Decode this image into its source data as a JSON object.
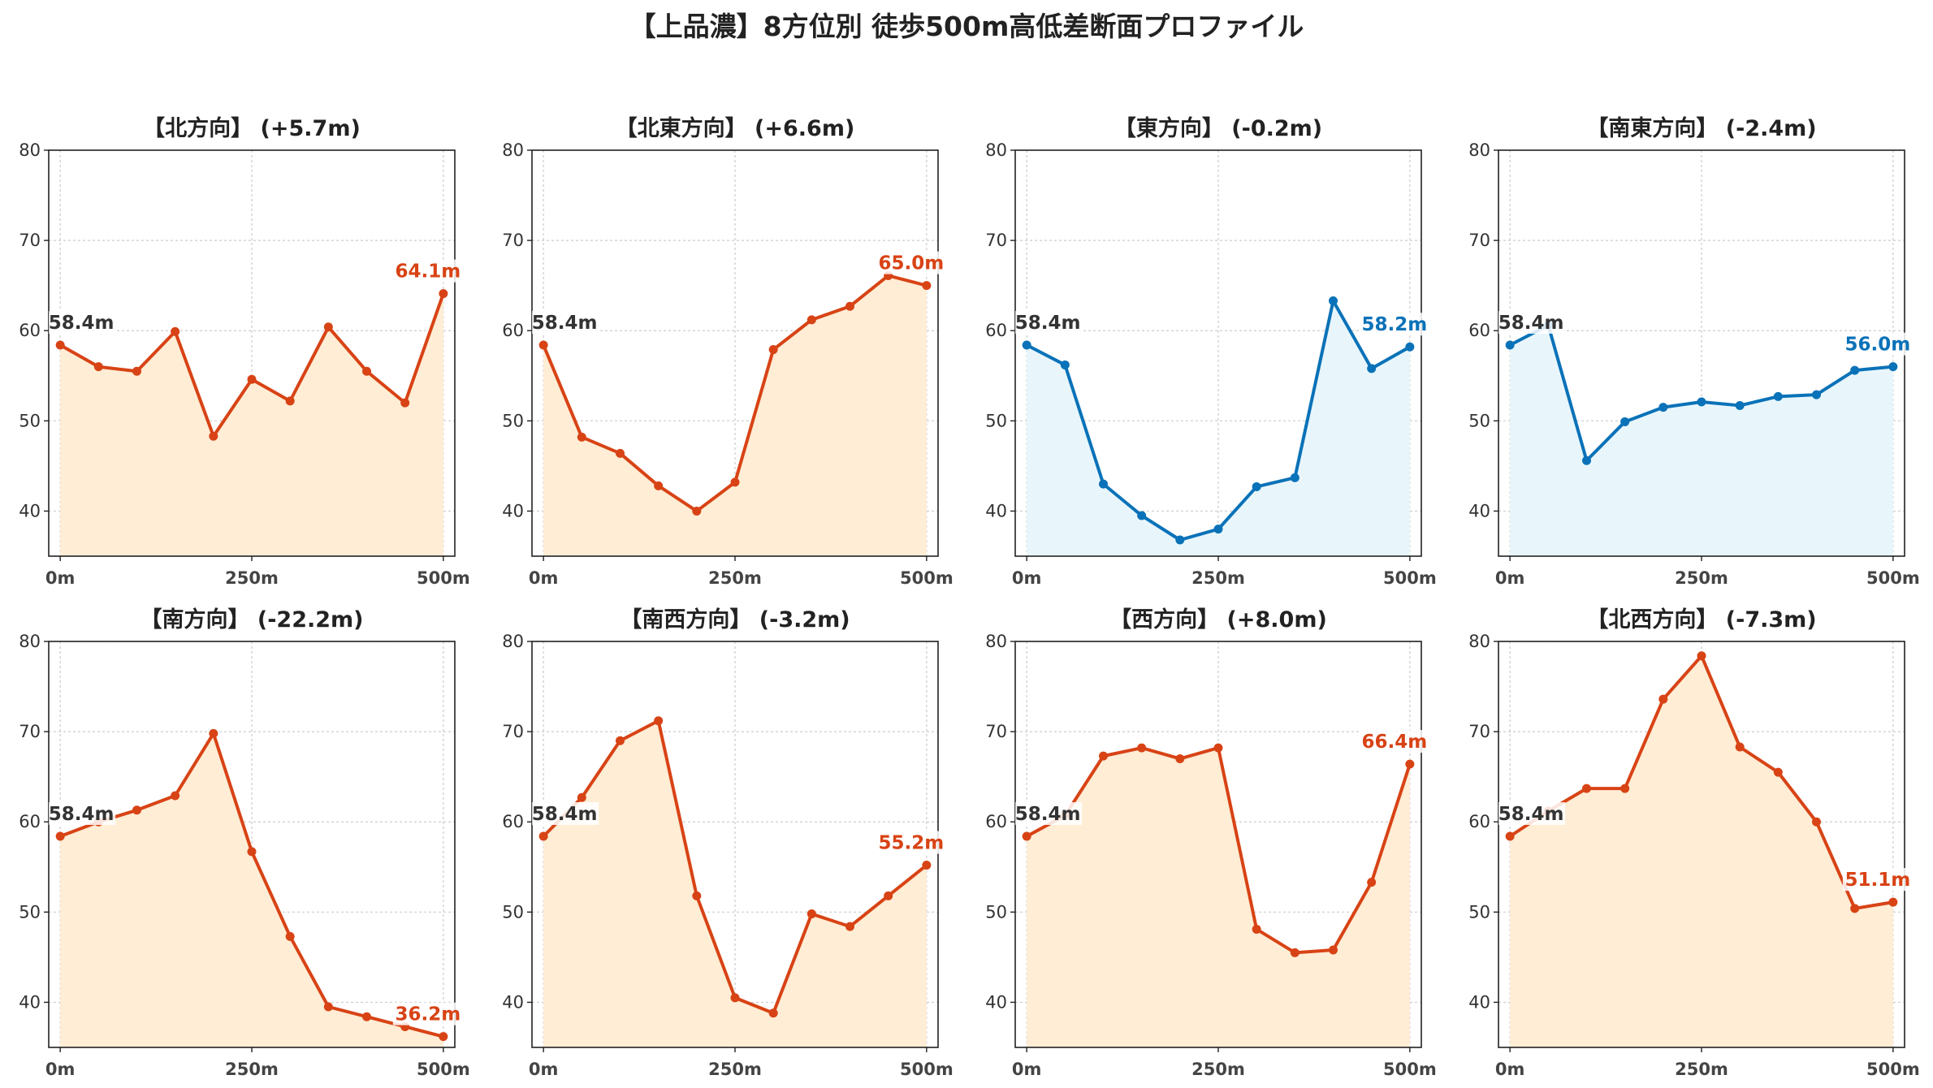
{
  "figure_title": "【上品濃】8方位別 徒歩500m高低差断面プロファイル",
  "colors": {
    "up_line": "#d84315",
    "up_fill": "#ffedd5",
    "down_line": "#0a72b8",
    "down_fill": "#e8f6fc",
    "start_label": "#333333",
    "grid": "#cccccc"
  },
  "chart_data": [
    {
      "type": "line",
      "title": "【北方向】 (+5.7m)",
      "trend": "up",
      "x": [
        0,
        50,
        100,
        150,
        200,
        250,
        300,
        350,
        400,
        450,
        500
      ],
      "y": [
        58.4,
        56.0,
        55.5,
        59.9,
        48.3,
        54.6,
        52.2,
        60.4,
        55.5,
        52.0,
        64.1
      ],
      "start_label": "58.4m",
      "end_label": "64.1m",
      "xticks": [
        "0m",
        "250m",
        "500m"
      ],
      "yticks": [
        40,
        50,
        60,
        70,
        80
      ],
      "xlim": [
        -15,
        515
      ],
      "ylim": [
        35,
        80
      ],
      "grid": true
    },
    {
      "type": "line",
      "title": "【北東方向】 (+6.6m)",
      "trend": "up",
      "x": [
        0,
        50,
        100,
        150,
        200,
        250,
        300,
        350,
        400,
        450,
        500
      ],
      "y": [
        58.4,
        48.2,
        46.4,
        42.8,
        40.0,
        43.2,
        57.9,
        61.2,
        62.7,
        66.1,
        65.0
      ],
      "start_label": "58.4m",
      "end_label": "65.0m",
      "xticks": [
        "0m",
        "250m",
        "500m"
      ],
      "yticks": [
        40,
        50,
        60,
        70,
        80
      ],
      "xlim": [
        -15,
        515
      ],
      "ylim": [
        35,
        80
      ],
      "grid": true
    },
    {
      "type": "line",
      "title": "【東方向】 (-0.2m)",
      "trend": "down",
      "x": [
        0,
        50,
        100,
        150,
        200,
        250,
        300,
        350,
        400,
        450,
        500
      ],
      "y": [
        58.4,
        56.2,
        43.0,
        39.5,
        36.8,
        38.0,
        42.7,
        43.7,
        63.3,
        55.8,
        58.2
      ],
      "start_label": "58.4m",
      "end_label": "58.2m",
      "xticks": [
        "0m",
        "250m",
        "500m"
      ],
      "yticks": [
        40,
        50,
        60,
        70,
        80
      ],
      "xlim": [
        -15,
        515
      ],
      "ylim": [
        35,
        80
      ],
      "grid": true
    },
    {
      "type": "line",
      "title": "【南東方向】 (-2.4m)",
      "trend": "down",
      "x": [
        0,
        50,
        100,
        150,
        200,
        250,
        300,
        350,
        400,
        450,
        500
      ],
      "y": [
        58.4,
        60.6,
        45.6,
        49.9,
        51.5,
        52.1,
        51.7,
        52.7,
        52.9,
        55.6,
        56.0
      ],
      "start_label": "58.4m",
      "end_label": "56.0m",
      "xticks": [
        "0m",
        "250m",
        "500m"
      ],
      "yticks": [
        40,
        50,
        60,
        70,
        80
      ],
      "xlim": [
        -15,
        515
      ],
      "ylim": [
        35,
        80
      ],
      "grid": true
    },
    {
      "type": "line",
      "title": "【南方向】 (-22.2m)",
      "trend": "up",
      "x": [
        0,
        50,
        100,
        150,
        200,
        250,
        300,
        350,
        400,
        450,
        500
      ],
      "y": [
        58.4,
        60.0,
        61.3,
        62.9,
        69.8,
        56.7,
        47.3,
        39.5,
        38.4,
        37.3,
        36.2
      ],
      "start_label": "58.4m",
      "end_label": "36.2m",
      "xticks": [
        "0m",
        "250m",
        "500m"
      ],
      "yticks": [
        40,
        50,
        60,
        70,
        80
      ],
      "xlim": [
        -15,
        515
      ],
      "ylim": [
        35,
        80
      ],
      "grid": true
    },
    {
      "type": "line",
      "title": "【南西方向】 (-3.2m)",
      "trend": "up",
      "x": [
        0,
        50,
        100,
        150,
        200,
        250,
        300,
        350,
        400,
        450,
        500
      ],
      "y": [
        58.4,
        62.7,
        69.0,
        71.2,
        51.8,
        40.5,
        38.8,
        49.8,
        48.4,
        51.8,
        55.2
      ],
      "start_label": "58.4m",
      "end_label": "55.2m",
      "xticks": [
        "0m",
        "250m",
        "500m"
      ],
      "yticks": [
        40,
        50,
        60,
        70,
        80
      ],
      "xlim": [
        -15,
        515
      ],
      "ylim": [
        35,
        80
      ],
      "grid": true
    },
    {
      "type": "line",
      "title": "【西方向】 (+8.0m)",
      "trend": "up",
      "x": [
        0,
        50,
        100,
        150,
        200,
        250,
        300,
        350,
        400,
        450,
        500
      ],
      "y": [
        58.4,
        60.7,
        67.3,
        68.2,
        67.0,
        68.2,
        48.1,
        45.5,
        45.8,
        53.3,
        66.4
      ],
      "start_label": "58.4m",
      "end_label": "66.4m",
      "xticks": [
        "0m",
        "250m",
        "500m"
      ],
      "yticks": [
        40,
        50,
        60,
        70,
        80
      ],
      "xlim": [
        -15,
        515
      ],
      "ylim": [
        35,
        80
      ],
      "grid": true
    },
    {
      "type": "line",
      "title": "【北西方向】 (-7.3m)",
      "trend": "up",
      "x": [
        0,
        50,
        100,
        150,
        200,
        250,
        300,
        350,
        400,
        450,
        500
      ],
      "y": [
        58.4,
        61.2,
        63.7,
        63.7,
        73.6,
        78.4,
        68.3,
        65.5,
        60.0,
        50.4,
        51.1
      ],
      "start_label": "58.4m",
      "end_label": "51.1m",
      "xticks": [
        "0m",
        "250m",
        "500m"
      ],
      "yticks": [
        40,
        50,
        60,
        70,
        80
      ],
      "xlim": [
        -15,
        515
      ],
      "ylim": [
        35,
        80
      ],
      "grid": true
    }
  ]
}
